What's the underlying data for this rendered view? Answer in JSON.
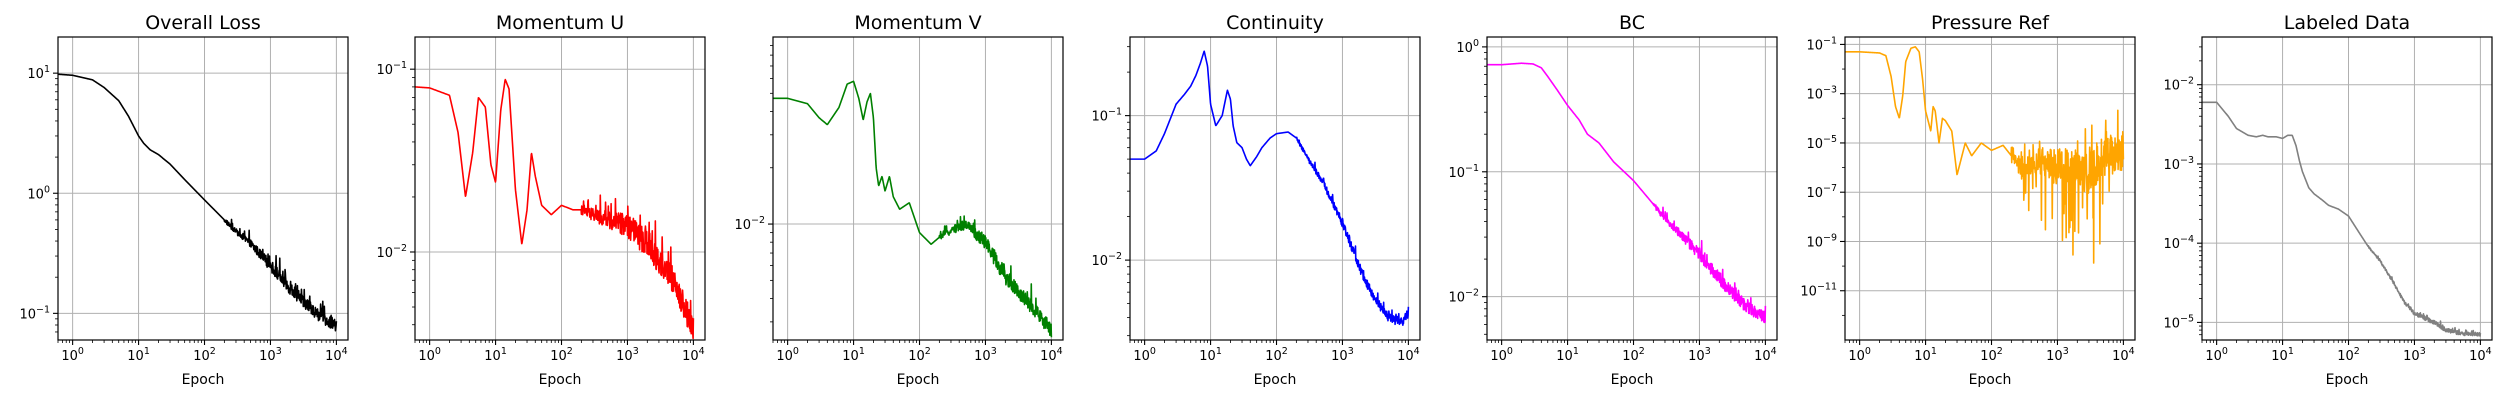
{
  "chart_data": [
    {
      "type": "line",
      "title": "Overall Loss",
      "xlabel": "Epoch",
      "ylabel": "",
      "xscale": "log",
      "yscale": "log",
      "xlim": [
        0.6,
        15000
      ],
      "ylim": [
        0.06,
        20
      ],
      "xticks": [
        {
          "base": "10",
          "exp": "0",
          "value": 1
        },
        {
          "base": "10",
          "exp": "1",
          "value": 10
        },
        {
          "base": "10",
          "exp": "2",
          "value": 100
        },
        {
          "base": "10",
          "exp": "3",
          "value": 1000
        },
        {
          "base": "10",
          "exp": "4",
          "value": 10000
        }
      ],
      "yticks": [
        {
          "base": "10",
          "exp": "1",
          "value": 10
        },
        {
          "base": "10",
          "exp": "0",
          "value": 1
        },
        {
          "base": "10",
          "exp": "−1",
          "value": 0.1
        }
      ],
      "grid": true,
      "series": [
        {
          "color": "#000000",
          "noise": 0.1,
          "x": [
            0.6,
            1,
            2,
            3,
            5,
            7,
            10,
            12,
            15,
            20,
            30,
            50,
            100,
            200,
            300,
            500,
            1000,
            2000,
            3000,
            5000,
            10000
          ],
          "y": [
            9.8,
            9.6,
            8.8,
            7.6,
            5.9,
            4.4,
            3.0,
            2.6,
            2.3,
            2.1,
            1.75,
            1.3,
            0.88,
            0.6,
            0.48,
            0.38,
            0.25,
            0.16,
            0.13,
            0.1,
            0.078
          ]
        }
      ]
    },
    {
      "type": "line",
      "title": "Momentum U",
      "xlabel": "Epoch",
      "ylabel": "",
      "xscale": "log",
      "yscale": "log",
      "xlim": [
        0.6,
        15000
      ],
      "ylim": [
        0.0033,
        0.15
      ],
      "xticks": [
        {
          "base": "10",
          "exp": "0",
          "value": 1
        },
        {
          "base": "10",
          "exp": "1",
          "value": 10
        },
        {
          "base": "10",
          "exp": "2",
          "value": 100
        },
        {
          "base": "10",
          "exp": "3",
          "value": 1000
        },
        {
          "base": "10",
          "exp": "4",
          "value": 10000
        }
      ],
      "yticks": [
        {
          "base": "10",
          "exp": "−1",
          "value": 0.1
        },
        {
          "base": "10",
          "exp": "−2",
          "value": 0.01
        }
      ],
      "grid": true,
      "series": [
        {
          "color": "#ff0000",
          "noise": 0.14,
          "x": [
            0.6,
            1,
            2,
            2.7,
            3.5,
            4.5,
            5.5,
            7,
            8.5,
            10,
            12,
            14,
            16,
            20,
            25,
            30,
            35,
            40,
            50,
            70,
            100,
            150,
            200,
            300,
            500,
            1000,
            2000,
            3000,
            5000,
            10000
          ],
          "y": [
            0.08,
            0.079,
            0.072,
            0.045,
            0.02,
            0.035,
            0.07,
            0.062,
            0.03,
            0.024,
            0.06,
            0.088,
            0.078,
            0.022,
            0.011,
            0.017,
            0.035,
            0.026,
            0.018,
            0.016,
            0.018,
            0.017,
            0.017,
            0.016,
            0.015,
            0.014,
            0.011,
            0.009,
            0.007,
            0.0038
          ]
        }
      ]
    },
    {
      "type": "line",
      "title": "Momentum V",
      "xlabel": "Epoch",
      "ylabel": "",
      "xscale": "log",
      "yscale": "log",
      "xlim": [
        0.6,
        15000
      ],
      "ylim": [
        0.0024,
        0.1
      ],
      "xticks": [
        {
          "base": "10",
          "exp": "0",
          "value": 1
        },
        {
          "base": "10",
          "exp": "1",
          "value": 10
        },
        {
          "base": "10",
          "exp": "2",
          "value": 100
        },
        {
          "base": "10",
          "exp": "3",
          "value": 1000
        },
        {
          "base": "10",
          "exp": "4",
          "value": 10000
        }
      ],
      "yticks": [
        {
          "base": "10",
          "exp": "−2",
          "value": 0.01
        }
      ],
      "grid": true,
      "series": [
        {
          "color": "#008000",
          "noise": 0.08,
          "x": [
            0.6,
            1,
            2,
            3,
            4,
            6,
            8,
            10,
            12,
            14,
            16,
            18,
            20,
            22,
            24,
            27,
            30,
            35,
            40,
            50,
            70,
            100,
            150,
            200,
            300,
            500,
            1000,
            2000,
            5000,
            10000
          ],
          "y": [
            0.047,
            0.047,
            0.044,
            0.037,
            0.034,
            0.042,
            0.056,
            0.058,
            0.047,
            0.036,
            0.045,
            0.05,
            0.037,
            0.02,
            0.016,
            0.018,
            0.015,
            0.018,
            0.014,
            0.012,
            0.013,
            0.009,
            0.0078,
            0.0085,
            0.0092,
            0.01,
            0.008,
            0.0052,
            0.0036,
            0.0027
          ]
        }
      ]
    },
    {
      "type": "line",
      "title": "Continuity",
      "xlabel": "Epoch",
      "ylabel": "",
      "xscale": "log",
      "yscale": "log",
      "xlim": [
        0.6,
        15000
      ],
      "ylim": [
        0.0028,
        0.35
      ],
      "xticks": [
        {
          "base": "10",
          "exp": "0",
          "value": 1
        },
        {
          "base": "10",
          "exp": "1",
          "value": 10
        },
        {
          "base": "10",
          "exp": "2",
          "value": 100
        },
        {
          "base": "10",
          "exp": "3",
          "value": 1000
        },
        {
          "base": "10",
          "exp": "4",
          "value": 10000
        }
      ],
      "yticks": [
        {
          "base": "10",
          "exp": "−1",
          "value": 0.1
        },
        {
          "base": "10",
          "exp": "−2",
          "value": 0.01
        }
      ],
      "grid": true,
      "series": [
        {
          "color": "#0000ff",
          "noise": 0.06,
          "x": [
            0.6,
            1,
            1.5,
            2,
            3,
            4,
            5,
            6,
            7,
            8,
            9,
            10,
            12,
            15,
            18,
            20,
            22,
            25,
            30,
            35,
            40,
            50,
            60,
            80,
            100,
            150,
            200,
            300,
            500,
            1000,
            2000,
            3000,
            5000,
            8000,
            10000
          ],
          "y": [
            0.05,
            0.05,
            0.057,
            0.075,
            0.12,
            0.14,
            0.16,
            0.19,
            0.23,
            0.28,
            0.22,
            0.12,
            0.085,
            0.1,
            0.15,
            0.13,
            0.085,
            0.065,
            0.06,
            0.05,
            0.045,
            0.052,
            0.06,
            0.07,
            0.075,
            0.077,
            0.07,
            0.05,
            0.035,
            0.018,
            0.008,
            0.0055,
            0.004,
            0.0037,
            0.0043
          ]
        }
      ]
    },
    {
      "type": "line",
      "title": "BC",
      "xlabel": "Epoch",
      "ylabel": "",
      "xscale": "log",
      "yscale": "log",
      "xlim": [
        0.6,
        15000
      ],
      "ylim": [
        0.0045,
        1.2
      ],
      "xticks": [
        {
          "base": "10",
          "exp": "0",
          "value": 1
        },
        {
          "base": "10",
          "exp": "1",
          "value": 10
        },
        {
          "base": "10",
          "exp": "2",
          "value": 100
        },
        {
          "base": "10",
          "exp": "3",
          "value": 1000
        },
        {
          "base": "10",
          "exp": "4",
          "value": 10000
        }
      ],
      "yticks": [
        {
          "base": "10",
          "exp": "0",
          "value": 1
        },
        {
          "base": "10",
          "exp": "−1",
          "value": 0.1
        },
        {
          "base": "10",
          "exp": "−2",
          "value": 0.01
        }
      ],
      "grid": true,
      "series": [
        {
          "color": "#ff00ff",
          "noise": 0.1,
          "x": [
            0.6,
            1,
            2,
            3,
            4,
            5,
            7,
            10,
            15,
            20,
            30,
            50,
            100,
            200,
            300,
            500,
            1000,
            2000,
            3000,
            5000,
            10000
          ],
          "y": [
            0.72,
            0.72,
            0.74,
            0.73,
            0.68,
            0.58,
            0.45,
            0.34,
            0.26,
            0.2,
            0.17,
            0.12,
            0.085,
            0.055,
            0.042,
            0.032,
            0.022,
            0.014,
            0.011,
            0.0085,
            0.0067
          ]
        }
      ]
    },
    {
      "type": "line",
      "title": "Pressure Ref",
      "xlabel": "Epoch",
      "ylabel": "",
      "xscale": "log",
      "yscale": "log",
      "xlim": [
        0.6,
        15000
      ],
      "ylim": [
        1e-13,
        0.2
      ],
      "xticks": [
        {
          "base": "10",
          "exp": "0",
          "value": 1
        },
        {
          "base": "10",
          "exp": "1",
          "value": 10
        },
        {
          "base": "10",
          "exp": "2",
          "value": 100
        },
        {
          "base": "10",
          "exp": "3",
          "value": 1000
        },
        {
          "base": "10",
          "exp": "4",
          "value": 10000
        }
      ],
      "yticks": [
        {
          "base": "10",
          "exp": "−1",
          "value": 0.1
        },
        {
          "base": "10",
          "exp": "−3",
          "value": 0.001
        },
        {
          "base": "10",
          "exp": "−5",
          "value": 1e-05
        },
        {
          "base": "10",
          "exp": "−7",
          "value": 1e-07
        },
        {
          "base": "10",
          "exp": "−9",
          "value": 1e-09
        },
        {
          "base": "10",
          "exp": "−11",
          "value": 1e-11
        }
      ],
      "grid": true,
      "series": [
        {
          "color": "#ffa500",
          "noise": 1.6,
          "x": [
            0.6,
            1,
            2,
            2.5,
            3,
            3.5,
            4,
            4.5,
            5,
            6,
            7,
            8,
            9,
            10,
            12,
            13,
            14,
            16,
            18,
            20,
            25,
            30,
            40,
            50,
            70,
            100,
            150,
            200,
            300,
            500,
            1000,
            2000,
            3000,
            5000,
            10000
          ],
          "y": [
            0.05,
            0.05,
            0.045,
            0.035,
            0.005,
            0.0003,
            0.0001,
            0.0008,
            0.02,
            0.07,
            0.08,
            0.05,
            0.004,
            0.0002,
            3e-05,
            0.0003,
            0.0002,
            1e-05,
            0.0001,
            8e-05,
            3e-05,
            5e-07,
            1e-05,
            3e-06,
            1e-05,
            5e-06,
            8e-06,
            3e-06,
            1e-06,
            2e-06,
            1e-06,
            8e-07,
            5e-07,
            3e-06,
            4e-06
          ]
        }
      ]
    },
    {
      "type": "line",
      "title": "Labeled Data",
      "xlabel": "Epoch",
      "ylabel": "",
      "xscale": "log",
      "yscale": "log",
      "xlim": [
        0.6,
        15000
      ],
      "ylim": [
        6e-06,
        0.04
      ],
      "xticks": [
        {
          "base": "10",
          "exp": "0",
          "value": 1
        },
        {
          "base": "10",
          "exp": "1",
          "value": 10
        },
        {
          "base": "10",
          "exp": "2",
          "value": 100
        },
        {
          "base": "10",
          "exp": "3",
          "value": 1000
        },
        {
          "base": "10",
          "exp": "4",
          "value": 10000
        }
      ],
      "yticks": [
        {
          "base": "10",
          "exp": "−2",
          "value": 0.01
        },
        {
          "base": "10",
          "exp": "−3",
          "value": 0.001
        },
        {
          "base": "10",
          "exp": "−4",
          "value": 0.0001
        },
        {
          "base": "10",
          "exp": "−5",
          "value": 1e-05
        }
      ],
      "grid": true,
      "series": [
        {
          "color": "#808080",
          "noise": 0.05,
          "x": [
            0.6,
            1,
            1.5,
            2,
            3,
            4,
            5,
            6,
            8,
            10,
            12,
            14,
            16,
            18,
            20,
            25,
            30,
            40,
            50,
            70,
            100,
            150,
            200,
            300,
            500,
            700,
            1000,
            2000,
            3000,
            5000,
            10000
          ],
          "y": [
            0.006,
            0.006,
            0.004,
            0.0028,
            0.0023,
            0.0022,
            0.0023,
            0.0022,
            0.0022,
            0.0021,
            0.0023,
            0.0023,
            0.0017,
            0.0011,
            0.0008,
            0.0005,
            0.00042,
            0.00035,
            0.0003,
            0.00027,
            0.00022,
            0.00013,
            9e-05,
            6e-05,
            3e-05,
            1.8e-05,
            1.3e-05,
            1e-05,
            8e-06,
            7.3e-06,
            7e-06
          ]
        }
      ]
    }
  ]
}
